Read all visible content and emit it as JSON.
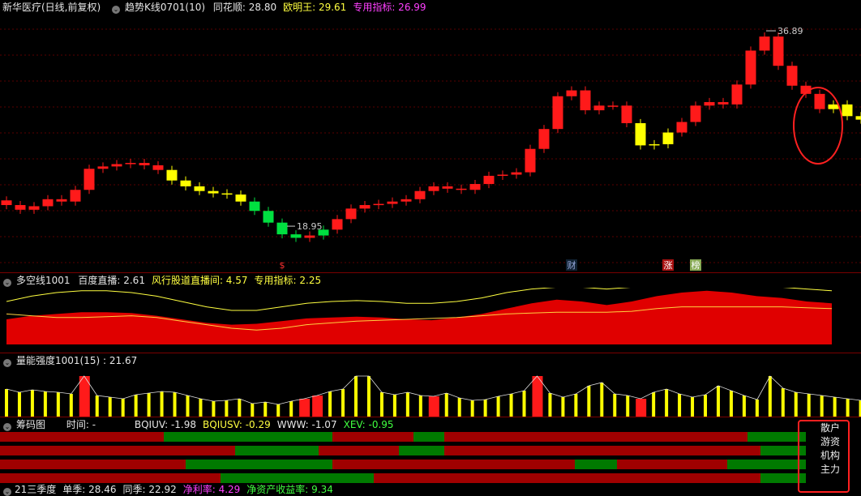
{
  "main": {
    "title": "新华医疗(日线,前复权)",
    "indicator": "趋势K线0701(10)",
    "items": [
      {
        "label": "同花顺:",
        "value": "28.80",
        "color": "#e6e6e6"
      },
      {
        "label": "欧明王:",
        "value": "29.61",
        "color": "#ffff40"
      },
      {
        "label": "专用指标:",
        "value": "26.99",
        "color": "#ff40ff"
      }
    ],
    "high_label": "36.89",
    "low_label": "18.95",
    "events": [
      "$",
      "财",
      "涨",
      "榜"
    ]
  },
  "p2": {
    "title": "多空线1001",
    "items": [
      {
        "label": "百度直播:",
        "value": "2.61",
        "color": "#e6e6e6"
      },
      {
        "label": "风行股道直播间:",
        "value": "4.57",
        "color": "#ffff40"
      },
      {
        "label": "专用指标:",
        "value": "2.25",
        "color": "#ffff40"
      }
    ]
  },
  "p3": {
    "title": "量能强度1001(15)",
    "value": ": 21.67"
  },
  "p4": {
    "title": "筹码图",
    "time_label": "时间: -",
    "items": [
      {
        "label": "BQIUV:",
        "value": "-1.98",
        "color": "#e6e6e6"
      },
      {
        "label": "BQIUSV:",
        "value": "-0.29",
        "color": "#ffff40"
      },
      {
        "label": "WWW:",
        "value": "-1.07",
        "color": "#e6e6e6"
      },
      {
        "label": "XEV:",
        "value": "-0.95",
        "color": "#40ff40"
      }
    ],
    "legend": [
      "散户",
      "游资",
      "机构",
      "主力"
    ]
  },
  "bottom": {
    "items": [
      {
        "text": "21三季度",
        "color": "#e6e6e6"
      },
      {
        "text": "单季: 28.46",
        "color": "#e6e6e6"
      },
      {
        "text": "同季: 22.92",
        "color": "#e6e6e6"
      },
      {
        "text": "净利率: 4.29",
        "color": "#ff40ff"
      },
      {
        "text": "净资产收益率: 9.34",
        "color": "#40ff40"
      }
    ]
  },
  "colors": {
    "up": "#ff1a1a",
    "down": "#00e040",
    "neutral": "#ffff00",
    "bg": "#000000",
    "grid": "#5a0000"
  }
}
